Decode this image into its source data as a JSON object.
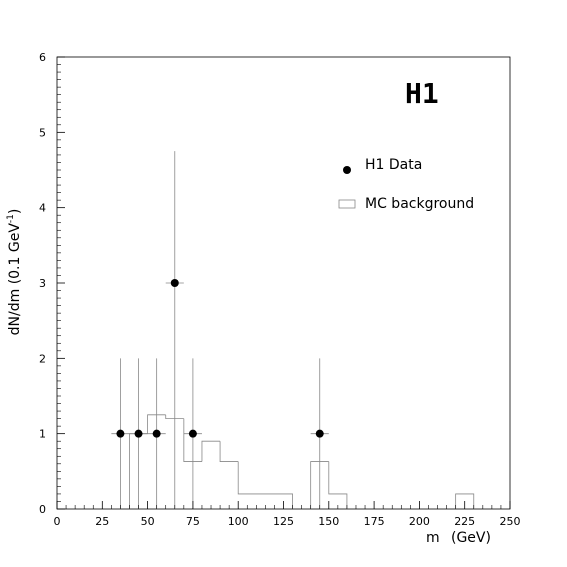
{
  "chart_data": {
    "type": "histogram-with-points",
    "brand_label": "H1",
    "xlabel_var": "m",
    "xlabel_unit": "(GeV)",
    "ylabel_text": "dN/dm (0.1 GeV",
    "ylabel_sup": "-1",
    "ylabel_close": ")",
    "xlim": [
      0,
      250
    ],
    "ylim": [
      0,
      6
    ],
    "x_ticks": [
      "0",
      "25",
      "50",
      "75",
      "100",
      "125",
      "150",
      "175",
      "200",
      "225",
      "250"
    ],
    "y_ticks": [
      "0",
      "1",
      "2",
      "3",
      "4",
      "5",
      "6"
    ],
    "legend": [
      {
        "label": "H1 Data",
        "marker": "filled-circle"
      },
      {
        "label": "MC background",
        "marker": "open-box"
      }
    ],
    "data_points": [
      {
        "x": 35,
        "y": 1,
        "yerr_up": 1.0,
        "yerr_down": 1.0,
        "xerr": 5
      },
      {
        "x": 45,
        "y": 1,
        "yerr_up": 1.0,
        "yerr_down": 1.0,
        "xerr": 5
      },
      {
        "x": 55,
        "y": 1,
        "yerr_up": 1.0,
        "yerr_down": 1.0,
        "xerr": 5
      },
      {
        "x": 65,
        "y": 3,
        "yerr_up": 1.75,
        "yerr_down": 3.0,
        "xerr": 5
      },
      {
        "x": 75,
        "y": 1,
        "yerr_up": 1.0,
        "yerr_down": 1.0,
        "xerr": 5
      },
      {
        "x": 145,
        "y": 1,
        "yerr_up": 1.0,
        "yerr_down": 1.0,
        "xerr": 5
      }
    ],
    "mc_background": [
      {
        "x0": 40,
        "x1": 50,
        "y": 1.0
      },
      {
        "x0": 50,
        "x1": 60,
        "y": 1.25
      },
      {
        "x0": 60,
        "x1": 70,
        "y": 1.2
      },
      {
        "x0": 70,
        "x1": 80,
        "y": 0.63
      },
      {
        "x0": 80,
        "x1": 90,
        "y": 0.9
      },
      {
        "x0": 90,
        "x1": 100,
        "y": 0.63
      },
      {
        "x0": 100,
        "x1": 130,
        "y": 0.2
      },
      {
        "x0": 140,
        "x1": 150,
        "y": 0.63
      },
      {
        "x0": 150,
        "x1": 160,
        "y": 0.2
      },
      {
        "x0": 220,
        "x1": 230,
        "y": 0.2
      }
    ]
  }
}
